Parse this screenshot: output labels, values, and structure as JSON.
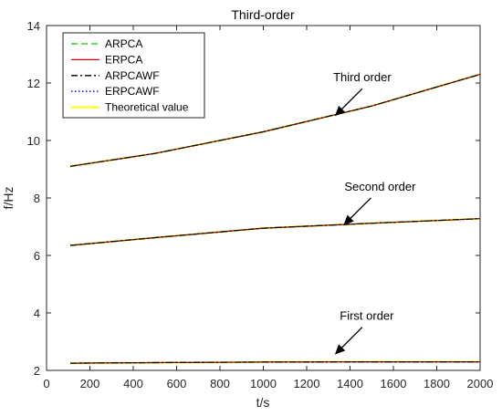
{
  "chart_data": {
    "type": "line",
    "title": "Third-order",
    "xlabel": "t/s",
    "ylabel": "f/Hz",
    "xlim": [
      0,
      2000
    ],
    "ylim": [
      2,
      14
    ],
    "xticks": [
      0,
      200,
      400,
      600,
      800,
      1000,
      1200,
      1400,
      1600,
      1800,
      2000
    ],
    "yticks": [
      2,
      4,
      6,
      8,
      10,
      12,
      14
    ],
    "grid": false,
    "legend_position": "top-left",
    "series": [
      {
        "name": "ARPCA",
        "color": "#00cc00",
        "dash": "dashed",
        "x": [
          110,
          500,
          1000,
          1500,
          2000
        ],
        "y_third": [
          9.1,
          9.55,
          10.3,
          11.2,
          12.3
        ],
        "y_second": [
          6.35,
          6.62,
          6.95,
          7.12,
          7.28
        ],
        "y_first": [
          2.25,
          2.27,
          2.29,
          2.3,
          2.3
        ]
      },
      {
        "name": "ERPCA",
        "color": "#e00000",
        "dash": "solid",
        "x": [
          110,
          500,
          1000,
          1500,
          2000
        ],
        "y_third": [
          9.1,
          9.55,
          10.3,
          11.2,
          12.3
        ],
        "y_second": [
          6.35,
          6.62,
          6.95,
          7.12,
          7.28
        ],
        "y_first": [
          2.25,
          2.27,
          2.29,
          2.3,
          2.3
        ]
      },
      {
        "name": "ARPCAWF",
        "color": "#000000",
        "dash": "dashdot",
        "x": [
          110,
          500,
          1000,
          1500,
          2000
        ],
        "y_third": [
          9.1,
          9.55,
          10.3,
          11.2,
          12.3
        ],
        "y_second": [
          6.35,
          6.62,
          6.95,
          7.12,
          7.28
        ],
        "y_first": [
          2.25,
          2.27,
          2.29,
          2.3,
          2.3
        ]
      },
      {
        "name": "ERPCAWF",
        "color": "#0000dd",
        "dash": "dotted",
        "x": [
          110,
          500,
          1000,
          1500,
          2000
        ],
        "y_third": [
          9.1,
          9.55,
          10.3,
          11.2,
          12.3
        ],
        "y_second": [
          6.35,
          6.62,
          6.95,
          7.12,
          7.28
        ],
        "y_first": [
          2.25,
          2.27,
          2.29,
          2.3,
          2.3
        ]
      },
      {
        "name": "Theoretical value",
        "color": "#ffff00",
        "dash": "solid",
        "x": [
          110,
          500,
          1000,
          1500,
          2000
        ],
        "y_third": [
          9.1,
          9.55,
          10.3,
          11.2,
          12.3
        ],
        "y_second": [
          6.35,
          6.62,
          6.95,
          7.12,
          7.28
        ],
        "y_first": [
          2.25,
          2.27,
          2.29,
          2.3,
          2.3
        ]
      }
    ],
    "annotations": [
      {
        "text": "Third order",
        "arrow_to": [
          1330,
          10.85
        ]
      },
      {
        "text": "Second order",
        "arrow_to": [
          1370,
          7.05
        ]
      },
      {
        "text": "First order",
        "arrow_to": [
          1330,
          2.55
        ]
      }
    ]
  }
}
